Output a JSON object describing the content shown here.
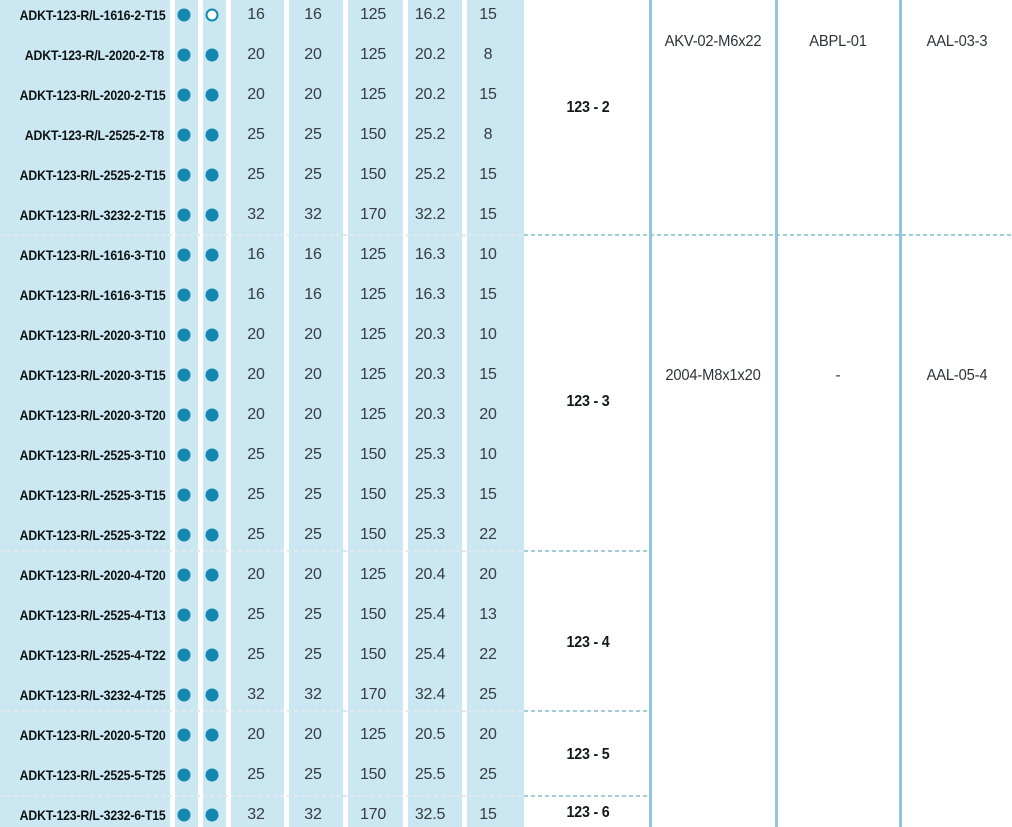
{
  "table": {
    "rows": [
      {
        "name": "ADKT-123-R/L-1616-2-T15",
        "dot1": "filled",
        "dot2": "open",
        "values": [
          "16",
          "16",
          "125",
          "16.2",
          "15"
        ]
      },
      {
        "name": "ADKT-123-R/L-2020-2-T8",
        "dot1": "filled",
        "dot2": "filled",
        "values": [
          "20",
          "20",
          "125",
          "20.2",
          "8"
        ]
      },
      {
        "name": "ADKT-123-R/L-2020-2-T15",
        "dot1": "filled",
        "dot2": "filled",
        "values": [
          "20",
          "20",
          "125",
          "20.2",
          "15"
        ]
      },
      {
        "name": "ADKT-123-R/L-2525-2-T8",
        "dot1": "filled",
        "dot2": "filled",
        "values": [
          "25",
          "25",
          "150",
          "25.2",
          "8"
        ]
      },
      {
        "name": "ADKT-123-R/L-2525-2-T15",
        "dot1": "filled",
        "dot2": "filled",
        "values": [
          "25",
          "25",
          "150",
          "25.2",
          "15"
        ]
      },
      {
        "name": "ADKT-123-R/L-3232-2-T15",
        "dot1": "filled",
        "dot2": "filled",
        "values": [
          "32",
          "32",
          "170",
          "32.2",
          "15"
        ]
      },
      {
        "name": "ADKT-123-R/L-1616-3-T10",
        "dot1": "filled",
        "dot2": "filled",
        "values": [
          "16",
          "16",
          "125",
          "16.3",
          "10"
        ]
      },
      {
        "name": "ADKT-123-R/L-1616-3-T15",
        "dot1": "filled",
        "dot2": "filled",
        "values": [
          "16",
          "16",
          "125",
          "16.3",
          "15"
        ]
      },
      {
        "name": "ADKT-123-R/L-2020-3-T10",
        "dot1": "filled",
        "dot2": "filled",
        "values": [
          "20",
          "20",
          "125",
          "20.3",
          "10"
        ]
      },
      {
        "name": "ADKT-123-R/L-2020-3-T15",
        "dot1": "filled",
        "dot2": "filled",
        "values": [
          "20",
          "20",
          "125",
          "20.3",
          "15"
        ]
      },
      {
        "name": "ADKT-123-R/L-2020-3-T20",
        "dot1": "filled",
        "dot2": "filled",
        "values": [
          "20",
          "20",
          "125",
          "20.3",
          "20"
        ]
      },
      {
        "name": "ADKT-123-R/L-2525-3-T10",
        "dot1": "filled",
        "dot2": "filled",
        "values": [
          "25",
          "25",
          "150",
          "25.3",
          "10"
        ]
      },
      {
        "name": "ADKT-123-R/L-2525-3-T15",
        "dot1": "filled",
        "dot2": "filled",
        "values": [
          "25",
          "25",
          "150",
          "25.3",
          "15"
        ]
      },
      {
        "name": "ADKT-123-R/L-2525-3-T22",
        "dot1": "filled",
        "dot2": "filled",
        "values": [
          "25",
          "25",
          "150",
          "25.3",
          "22"
        ]
      },
      {
        "name": "ADKT-123-R/L-2020-4-T20",
        "dot1": "filled",
        "dot2": "filled",
        "values": [
          "20",
          "20",
          "125",
          "20.4",
          "20"
        ]
      },
      {
        "name": "ADKT-123-R/L-2525-4-T13",
        "dot1": "filled",
        "dot2": "filled",
        "values": [
          "25",
          "25",
          "150",
          "25.4",
          "13"
        ]
      },
      {
        "name": "ADKT-123-R/L-2525-4-T22",
        "dot1": "filled",
        "dot2": "filled",
        "values": [
          "25",
          "25",
          "150",
          "25.4",
          "22"
        ]
      },
      {
        "name": "ADKT-123-R/L-3232-4-T25",
        "dot1": "filled",
        "dot2": "filled",
        "values": [
          "32",
          "32",
          "170",
          "32.4",
          "25"
        ]
      },
      {
        "name": "ADKT-123-R/L-2020-5-T20",
        "dot1": "filled",
        "dot2": "filled",
        "values": [
          "20",
          "20",
          "125",
          "20.5",
          "20"
        ]
      },
      {
        "name": "ADKT-123-R/L-2525-5-T25",
        "dot1": "filled",
        "dot2": "filled",
        "values": [
          "25",
          "25",
          "150",
          "25.5",
          "25"
        ]
      },
      {
        "name": "ADKT-123-R/L-3232-6-T15",
        "dot1": "filled",
        "dot2": "filled",
        "values": [
          "32",
          "32",
          "170",
          "32.5",
          "15"
        ]
      }
    ],
    "groups": [
      {
        "label": "123 - 2",
        "acc1": "AKV-02-M6x22",
        "acc2": "ABPL-01",
        "acc3": "AAL-03-3"
      },
      {
        "label": "123 - 3",
        "acc1": "2004-M8x1x20",
        "acc2": "-",
        "acc3": "AAL-05-4"
      },
      {
        "label": "123 - 4"
      },
      {
        "label": "123 - 5"
      },
      {
        "label": "123 - 6"
      }
    ],
    "colors": {
      "dot_accent": "#1488ae",
      "row_background": "#cbe7f2",
      "grid_line": "#8ec6dc",
      "dash_line": "#a6cbdb",
      "dash_line_on_blue": "#e0eaee"
    }
  }
}
